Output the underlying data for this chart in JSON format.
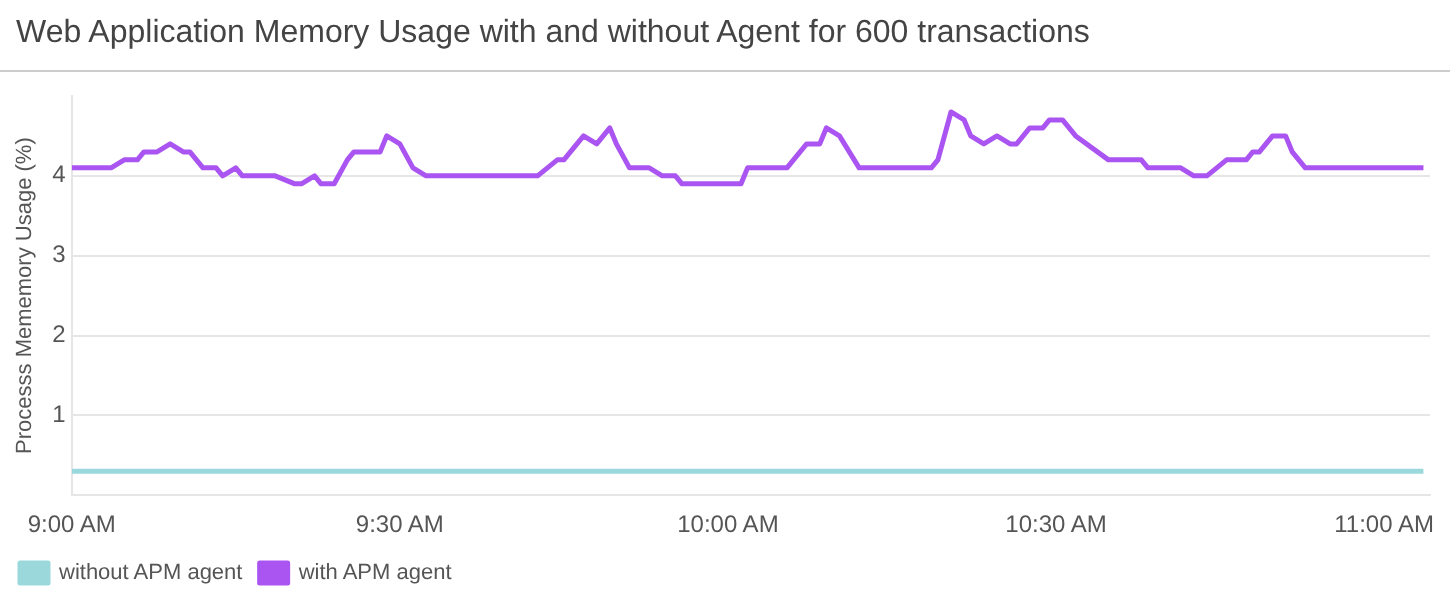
{
  "chart_data": {
    "type": "line",
    "title": "Web Application Memory Usage with and without Agent for 600 transactions",
    "ylabel": "Processs Mememory Usage (%)",
    "xlim": [
      9,
      11.07
    ],
    "xticks": [
      {
        "value": 9,
        "label": "9:00 AM"
      },
      {
        "value": 9.5,
        "label": "9:30 AM"
      },
      {
        "value": 10,
        "label": "10:00 AM"
      },
      {
        "value": 10.5,
        "label": "10:30 AM"
      },
      {
        "value": 11,
        "label": "11:00 AM"
      }
    ],
    "ylim": [
      0,
      5
    ],
    "yticks": [
      1,
      2,
      3,
      4
    ],
    "grid": "y",
    "legend": "bottom left",
    "marker": "none",
    "line_style": "solid",
    "series": [
      {
        "name": "without APM agent",
        "color": "#9ad8dc",
        "x": [
          9,
          11.06
        ],
        "values": [
          0.3,
          0.3
        ]
      },
      {
        "name": "with APM agent",
        "color": "#aa55f2",
        "x": [
          9,
          9.06,
          9.08,
          9.1,
          9.11,
          9.13,
          9.15,
          9.17,
          9.18,
          9.2,
          9.22,
          9.23,
          9.25,
          9.26,
          9.31,
          9.34,
          9.35,
          9.37,
          9.38,
          9.4,
          9.42,
          9.43,
          9.47,
          9.48,
          9.5,
          9.52,
          9.54,
          9.71,
          9.74,
          9.75,
          9.77,
          9.78,
          9.8,
          9.82,
          9.83,
          9.85,
          9.88,
          9.9,
          9.92,
          9.93,
          10.02,
          10.03,
          10.09,
          10.1,
          10.12,
          10.14,
          10.15,
          10.17,
          10.2,
          10.31,
          10.32,
          10.34,
          10.36,
          10.37,
          10.39,
          10.41,
          10.43,
          10.44,
          10.46,
          10.48,
          10.49,
          10.51,
          10.53,
          10.58,
          10.63,
          10.64,
          10.69,
          10.71,
          10.73,
          10.76,
          10.79,
          10.8,
          10.81,
          10.83,
          10.85,
          10.86,
          10.88,
          11.06
        ],
        "values": [
          4.1,
          4.1,
          4.2,
          4.2,
          4.3,
          4.3,
          4.4,
          4.3,
          4.3,
          4.1,
          4.1,
          4.0,
          4.1,
          4.0,
          4.0,
          3.9,
          3.9,
          4.0,
          3.9,
          3.9,
          4.2,
          4.3,
          4.3,
          4.5,
          4.4,
          4.1,
          4.0,
          4.0,
          4.2,
          4.2,
          4.4,
          4.5,
          4.4,
          4.6,
          4.4,
          4.1,
          4.1,
          4.0,
          4.0,
          3.9,
          3.9,
          4.1,
          4.1,
          4.2,
          4.4,
          4.4,
          4.6,
          4.5,
          4.1,
          4.1,
          4.2,
          4.8,
          4.7,
          4.5,
          4.4,
          4.5,
          4.4,
          4.4,
          4.6,
          4.6,
          4.7,
          4.7,
          4.5,
          4.2,
          4.2,
          4.1,
          4.1,
          4.0,
          4.0,
          4.2,
          4.2,
          4.3,
          4.3,
          4.5,
          4.5,
          4.3,
          4.1,
          4.1
        ]
      }
    ]
  }
}
